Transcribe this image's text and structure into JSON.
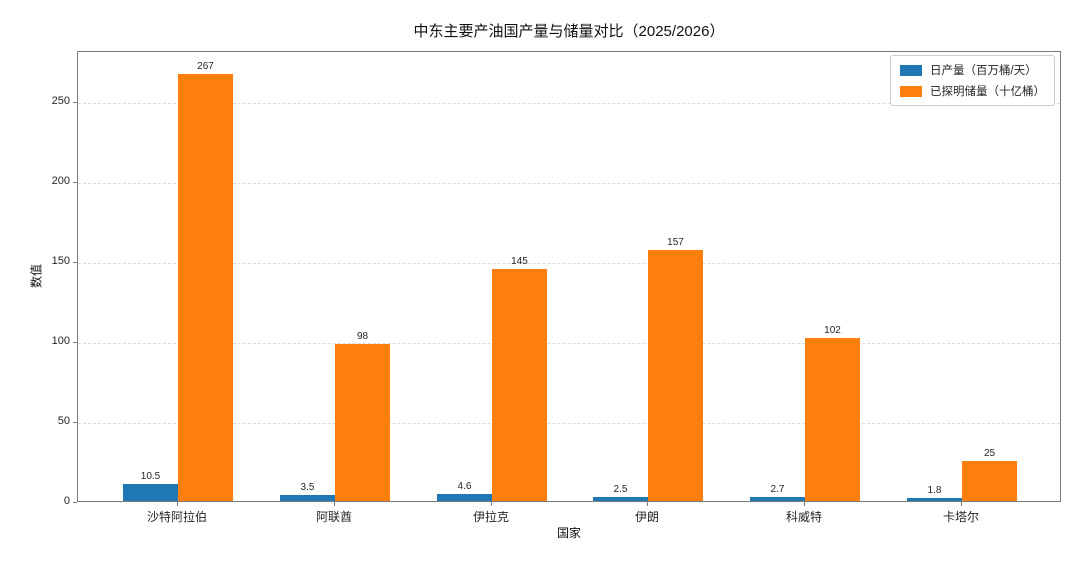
{
  "chart_data": {
    "type": "bar",
    "title": "中东主要产油国产量与储量对比（2025/2026）",
    "xlabel": "国家",
    "ylabel": "数值",
    "categories": [
      "沙特阿拉伯",
      "阿联酋",
      "伊拉克",
      "伊朗",
      "科威特",
      "卡塔尔"
    ],
    "series": [
      {
        "name": "日产量（百万桶/天）",
        "color": "#1f77b4",
        "values": [
          10.5,
          3.5,
          4.6,
          2.5,
          2.7,
          1.8
        ]
      },
      {
        "name": "已探明储量（十亿桶）",
        "color": "#ff7f0e",
        "values": [
          267,
          98,
          145,
          157,
          102,
          25
        ]
      }
    ],
    "yticks": [
      0,
      50,
      100,
      150,
      200,
      250
    ],
    "ylim": [
      0,
      282
    ],
    "grid": {
      "axis": "y",
      "style": "dashed",
      "color": "#dcdcdc"
    },
    "legend_position": "top-right",
    "bar_value_labels_shown": true
  }
}
